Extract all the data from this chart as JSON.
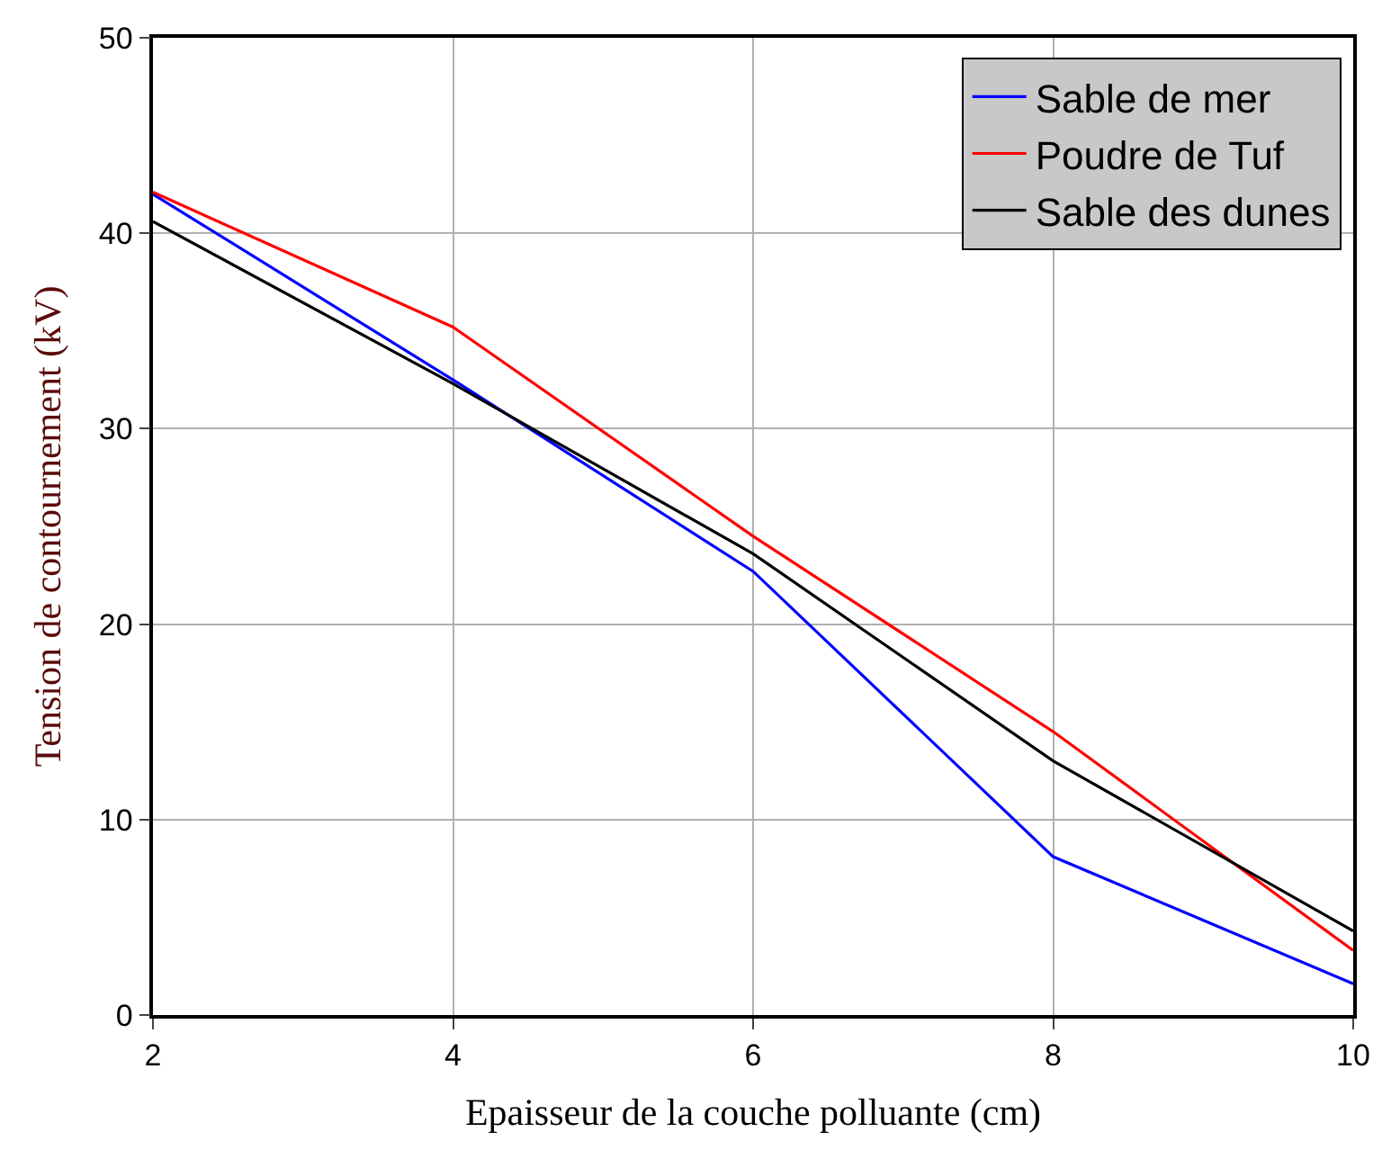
{
  "chart_data": {
    "type": "line",
    "xlabel": "Epaisseur de la couche polluante (cm)",
    "ylabel": "Tension de contournement (kV)",
    "x": [
      2,
      4,
      6,
      8,
      10
    ],
    "series": [
      {
        "name": "Sable de mer",
        "color": "#0000ff",
        "values": [
          42.0,
          32.5,
          22.7,
          8.1,
          1.6
        ]
      },
      {
        "name": "Poudre de Tuf",
        "color": "#ff0000",
        "values": [
          42.1,
          35.2,
          24.5,
          14.5,
          3.3
        ]
      },
      {
        "name": "Sable des dunes",
        "color": "#000000",
        "values": [
          40.6,
          32.3,
          23.6,
          13.0,
          4.3
        ]
      }
    ],
    "xlim": [
      2,
      10
    ],
    "xticks": [
      2,
      4,
      6,
      8,
      10
    ],
    "ylim": [
      0,
      50
    ],
    "yticks": [
      0,
      10,
      20,
      30,
      40,
      50
    ],
    "grid": true,
    "legend": "top right",
    "marker": "none",
    "line_style": "solid"
  }
}
